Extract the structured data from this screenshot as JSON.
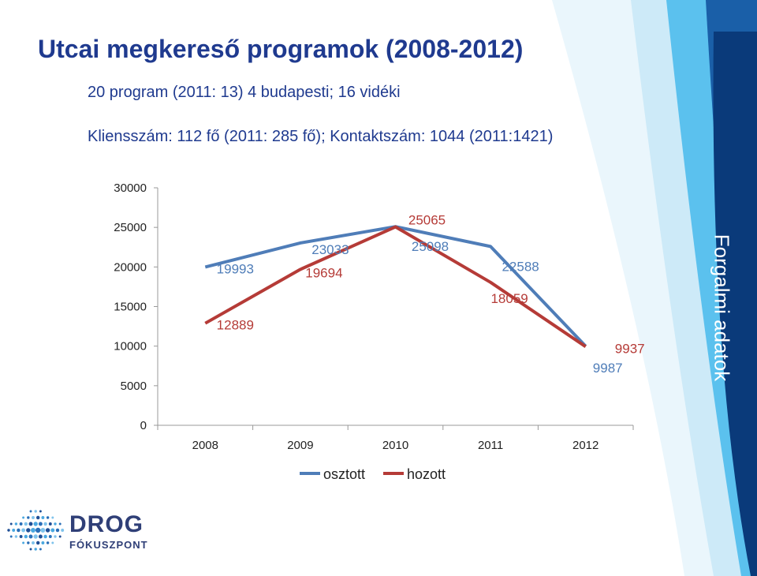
{
  "slide": {
    "title": "Utcai megkereső programok (2008-2012)",
    "line1": "20 program (2011: 13) 4 budapesti; 16 vidéki",
    "line2": "Kliensszám: 112 fő (2011: 285 fő); Kontaktszám:  1044 (2011:1421)",
    "side_label": "Forgalmi adatok",
    "logo_text_top": "DROG",
    "logo_text_bottom": "FÓKUSZPONT"
  },
  "colors": {
    "title": "#1f3a8f",
    "series_osztott": "#4f7db8",
    "series_hozott": "#b53b37",
    "deco_dark": "#0a3a7a",
    "deco_light": "#9fd5f2"
  },
  "chart_data": {
    "type": "line",
    "categories": [
      "2008",
      "2009",
      "2010",
      "2011",
      "2012"
    ],
    "ylim": [
      0,
      30000
    ],
    "yticks": [
      0,
      5000,
      10000,
      15000,
      20000,
      25000,
      30000
    ],
    "grid": false,
    "legend": "bottom",
    "series": [
      {
        "name": "osztott",
        "values": [
          19993,
          23033,
          25098,
          22588,
          9987
        ],
        "labels": [
          "19993",
          "23033",
          "25098",
          "22588",
          "9987"
        ]
      },
      {
        "name": "hozott",
        "values": [
          12889,
          19694,
          25065,
          18059,
          9937
        ],
        "labels": [
          "12889",
          "19694",
          "25065",
          "18059",
          "9937"
        ]
      }
    ]
  }
}
